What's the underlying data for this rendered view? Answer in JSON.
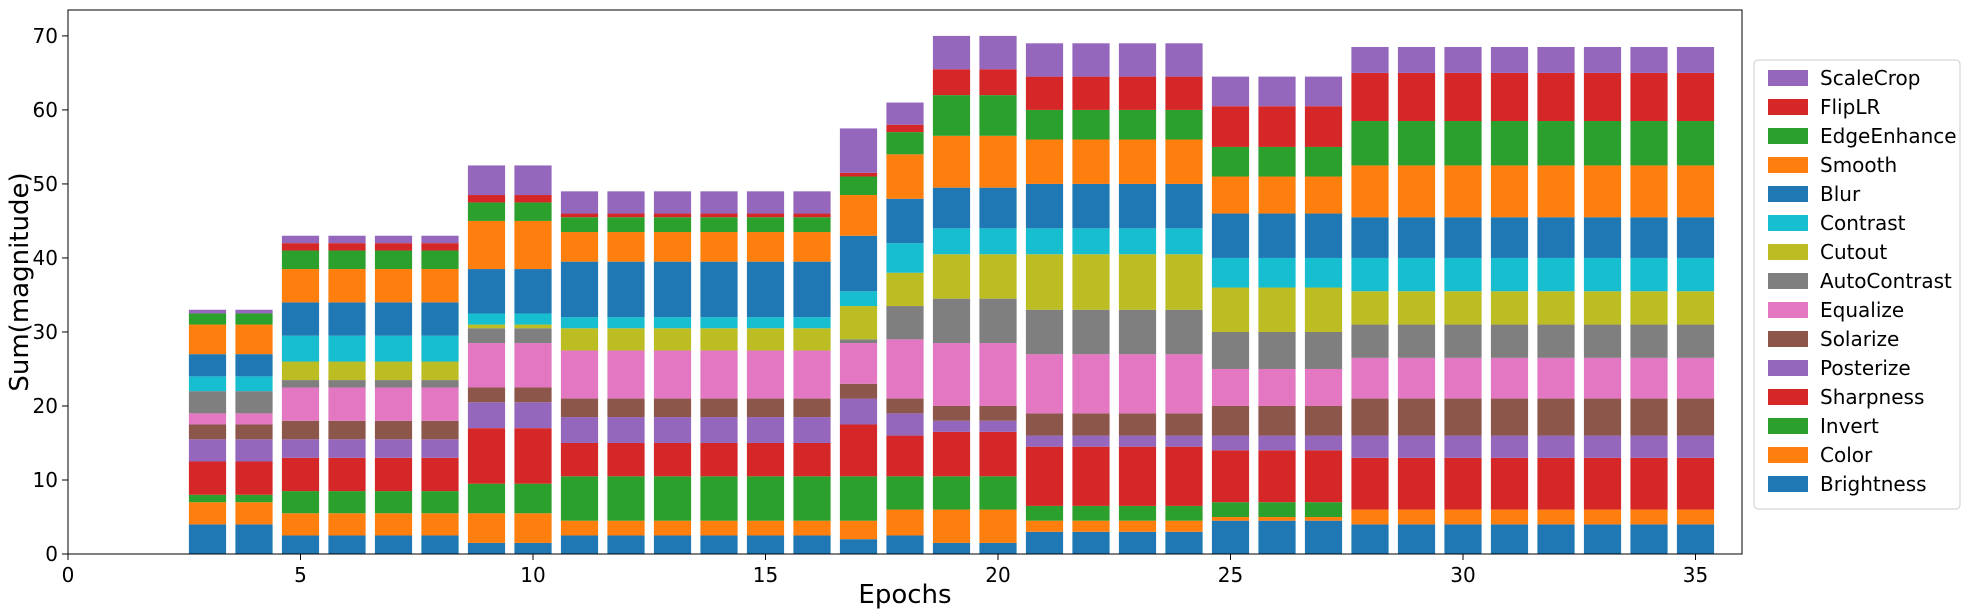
{
  "chart_data": {
    "type": "bar",
    "stacked": true,
    "xlabel": "Epochs",
    "ylabel": "Sum(magnitude)",
    "xlim": [
      0,
      36
    ],
    "ylim": [
      0,
      73.5
    ],
    "xticks": [
      0,
      5,
      10,
      15,
      20,
      25,
      30,
      35
    ],
    "yticks": [
      0,
      10,
      20,
      30,
      40,
      50,
      60,
      70
    ],
    "grid": false,
    "legend_position": "right",
    "x": [
      3,
      4,
      5,
      6,
      7,
      8,
      9,
      10,
      11,
      12,
      13,
      14,
      15,
      16,
      17,
      18,
      19,
      20,
      21,
      22,
      23,
      24,
      25,
      26,
      27,
      28,
      29,
      30,
      31,
      32,
      33,
      34,
      35
    ],
    "series": [
      {
        "name": "Brightness",
        "color": "#1f77b4",
        "values": [
          4,
          4,
          2.5,
          2.5,
          2.5,
          2.5,
          1.5,
          1.5,
          2.5,
          2.5,
          2.5,
          2.5,
          2.5,
          2.5,
          2,
          2.5,
          1.5,
          1.5,
          3,
          3,
          3,
          3,
          4.5,
          4.5,
          4.5,
          4,
          4,
          4,
          4,
          4,
          4,
          4,
          4
        ]
      },
      {
        "name": "Color",
        "color": "#ff7f0e",
        "values": [
          3,
          3,
          3,
          3,
          3,
          3,
          4,
          4,
          2,
          2,
          2,
          2,
          2,
          2,
          2.5,
          3.5,
          4.5,
          4.5,
          1.5,
          1.5,
          1.5,
          1.5,
          0.5,
          0.5,
          0.5,
          2,
          2,
          2,
          2,
          2,
          2,
          2,
          2
        ]
      },
      {
        "name": "Invert",
        "color": "#2ca02c",
        "values": [
          1,
          1,
          3,
          3,
          3,
          3,
          4,
          4,
          6,
          6,
          6,
          6,
          6,
          6,
          6,
          4.5,
          4.5,
          4.5,
          2,
          2,
          2,
          2,
          2,
          2,
          2,
          0,
          0,
          0,
          0,
          0,
          0,
          0,
          0
        ]
      },
      {
        "name": "Sharpness",
        "color": "#d62728",
        "values": [
          4.5,
          4.5,
          4.5,
          4.5,
          4.5,
          4.5,
          7.5,
          7.5,
          4.5,
          4.5,
          4.5,
          4.5,
          4.5,
          4.5,
          7,
          5.5,
          6,
          6,
          8,
          8,
          8,
          8,
          7,
          7,
          7,
          7,
          7,
          7,
          7,
          7,
          7,
          7,
          7
        ]
      },
      {
        "name": "Posterize",
        "color": "#9467bd",
        "values": [
          3,
          3,
          2.5,
          2.5,
          2.5,
          2.5,
          3.5,
          3.5,
          3.5,
          3.5,
          3.5,
          3.5,
          3.5,
          3.5,
          3.5,
          3,
          1.5,
          1.5,
          1.5,
          1.5,
          1.5,
          1.5,
          2,
          2,
          2,
          3,
          3,
          3,
          3,
          3,
          3,
          3,
          3
        ]
      },
      {
        "name": "Solarize",
        "color": "#8c564b",
        "values": [
          2,
          2,
          2.5,
          2.5,
          2.5,
          2.5,
          2,
          2,
          2.5,
          2.5,
          2.5,
          2.5,
          2.5,
          2.5,
          2,
          2,
          2,
          2,
          3,
          3,
          3,
          3,
          4,
          4,
          4,
          5,
          5,
          5,
          5,
          5,
          5,
          5,
          5
        ]
      },
      {
        "name": "Equalize",
        "color": "#e377c2",
        "values": [
          1.5,
          1.5,
          4.5,
          4.5,
          4.5,
          4.5,
          6,
          6,
          6.5,
          6.5,
          6.5,
          6.5,
          6.5,
          6.5,
          5.5,
          8,
          8.5,
          8.5,
          8,
          8,
          8,
          8,
          5,
          5,
          5,
          5.5,
          5.5,
          5.5,
          5.5,
          5.5,
          5.5,
          5.5,
          5.5
        ]
      },
      {
        "name": "AutoContrast",
        "color": "#7f7f7f",
        "values": [
          3,
          3,
          1,
          1,
          1,
          1,
          2,
          2,
          0,
          0,
          0,
          0,
          0,
          0,
          0.5,
          4.5,
          6,
          6,
          6,
          6,
          6,
          6,
          5,
          5,
          5,
          4.5,
          4.5,
          4.5,
          4.5,
          4.5,
          4.5,
          4.5,
          4.5
        ]
      },
      {
        "name": "Cutout",
        "color": "#bcbd22",
        "values": [
          0,
          0,
          2.5,
          2.5,
          2.5,
          2.5,
          0.5,
          0.5,
          3,
          3,
          3,
          3,
          3,
          3,
          4.5,
          4.5,
          6,
          6,
          7.5,
          7.5,
          7.5,
          7.5,
          6,
          6,
          6,
          4.5,
          4.5,
          4.5,
          4.5,
          4.5,
          4.5,
          4.5,
          4.5
        ]
      },
      {
        "name": "Contrast",
        "color": "#17becf",
        "values": [
          2,
          2,
          3.5,
          3.5,
          3.5,
          3.5,
          1.5,
          1.5,
          1.5,
          1.5,
          1.5,
          1.5,
          1.5,
          1.5,
          2,
          4,
          3.5,
          3.5,
          3.5,
          3.5,
          3.5,
          3.5,
          4,
          4,
          4,
          4.5,
          4.5,
          4.5,
          4.5,
          4.5,
          4.5,
          4.5,
          4.5
        ]
      },
      {
        "name": "Blur",
        "color": "#1f77b4",
        "values": [
          3,
          3,
          4.5,
          4.5,
          4.5,
          4.5,
          6,
          6,
          7.5,
          7.5,
          7.5,
          7.5,
          7.5,
          7.5,
          7.5,
          6,
          5.5,
          5.5,
          6,
          6,
          6,
          6,
          6,
          6,
          6,
          5.5,
          5.5,
          5.5,
          5.5,
          5.5,
          5.5,
          5.5,
          5.5
        ]
      },
      {
        "name": "Smooth",
        "color": "#ff7f0e",
        "values": [
          4,
          4,
          4.5,
          4.5,
          4.5,
          4.5,
          6.5,
          6.5,
          4,
          4,
          4,
          4,
          4,
          4,
          5.5,
          6,
          7,
          7,
          6,
          6,
          6,
          6,
          5,
          5,
          5,
          7,
          7,
          7,
          7,
          7,
          7,
          7,
          7
        ]
      },
      {
        "name": "EdgeEnhance",
        "color": "#2ca02c",
        "values": [
          1.5,
          1.5,
          2.5,
          2.5,
          2.5,
          2.5,
          2.5,
          2.5,
          2,
          2,
          2,
          2,
          2,
          2,
          2.5,
          3,
          5.5,
          5.5,
          4,
          4,
          4,
          4,
          4,
          4,
          4,
          6,
          6,
          6,
          6,
          6,
          6,
          6,
          6
        ]
      },
      {
        "name": "FlipLR",
        "color": "#d62728",
        "values": [
          0,
          0,
          1,
          1,
          1,
          1,
          1,
          1,
          0.5,
          0.5,
          0.5,
          0.5,
          0.5,
          0.5,
          0.5,
          1,
          3.5,
          3.5,
          4.5,
          4.5,
          4.5,
          4.5,
          5.5,
          5.5,
          5.5,
          6.5,
          6.5,
          6.5,
          6.5,
          6.5,
          6.5,
          6.5,
          6.5
        ]
      },
      {
        "name": "ScaleCrop",
        "color": "#9467bd",
        "values": [
          0.5,
          0.5,
          1,
          1,
          1,
          1,
          4,
          4,
          3,
          3,
          3,
          3,
          3,
          3,
          6,
          3,
          4.5,
          4.5,
          4.5,
          4.5,
          4.5,
          4.5,
          4,
          4,
          4,
          3.5,
          3.5,
          3.5,
          3.5,
          3.5,
          3.5,
          3.5,
          3.5
        ]
      }
    ]
  }
}
